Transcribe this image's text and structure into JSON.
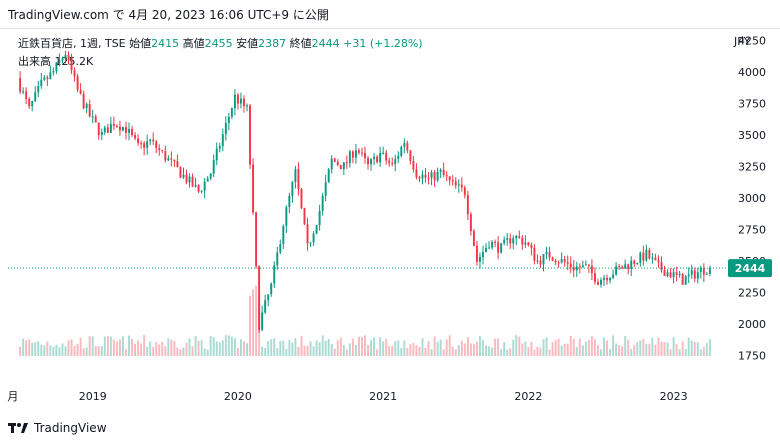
{
  "header": {
    "source_line": "TradingView.com で 4月 20, 2023 16:06 UTC+9 に公開"
  },
  "legend": {
    "symbol": "近鉄百貨店, 1週, TSE",
    "open_label": "始値",
    "open": "2415",
    "high_label": "高値",
    "high": "2455",
    "low_label": "安値",
    "low": "2387",
    "close_label": "終値",
    "close": "2444",
    "change": "+31 (+1.28%)",
    "volume_label": "出来高",
    "volume": "125.2K"
  },
  "currency": "JPY",
  "last_price_tag": "2444",
  "footer": {
    "brand": "TradingView"
  },
  "chart_data": {
    "type": "candlestick",
    "interval": "1 week",
    "ylim": [
      1700,
      4300
    ],
    "y_ticks": [
      "4250",
      "4000",
      "3750",
      "3500",
      "3250",
      "3000",
      "2750",
      "2500",
      "2250",
      "2000",
      "1750"
    ],
    "x_labels": [
      "月",
      "2019",
      "2020",
      "2021",
      "2022",
      "2023"
    ],
    "last_price": 2444,
    "colors": {
      "up": "#089981",
      "down": "#f23645"
    },
    "series": [
      {
        "name": "price",
        "points": [
          [
            "2018-07",
            3950
          ],
          [
            "2018-08",
            3700
          ],
          [
            "2018-09",
            3900
          ],
          [
            "2018-10",
            4000
          ],
          [
            "2018-11",
            4150
          ],
          [
            "2018-12",
            3850
          ],
          [
            "2019-01",
            3650
          ],
          [
            "2019-02",
            3500
          ],
          [
            "2019-03",
            3600
          ],
          [
            "2019-04",
            3550
          ],
          [
            "2019-05",
            3400
          ],
          [
            "2019-06",
            3450
          ],
          [
            "2019-07",
            3350
          ],
          [
            "2019-08",
            3250
          ],
          [
            "2019-09",
            3150
          ],
          [
            "2019-10",
            3050
          ],
          [
            "2019-11",
            3200
          ],
          [
            "2019-12",
            3500
          ],
          [
            "2020-01",
            3800
          ],
          [
            "2020-02",
            3700
          ],
          [
            "2020-03",
            2000
          ],
          [
            "2020-04",
            2300
          ],
          [
            "2020-05",
            2800
          ],
          [
            "2020-06",
            3200
          ],
          [
            "2020-07",
            2600
          ],
          [
            "2020-08",
            2900
          ],
          [
            "2020-09",
            3300
          ],
          [
            "2020-10",
            3250
          ],
          [
            "2020-11",
            3400
          ],
          [
            "2020-12",
            3250
          ],
          [
            "2021-01",
            3350
          ],
          [
            "2021-02",
            3250
          ],
          [
            "2021-03",
            3450
          ],
          [
            "2021-04",
            3200
          ],
          [
            "2021-05",
            3150
          ],
          [
            "2021-06",
            3200
          ],
          [
            "2021-07",
            3100
          ],
          [
            "2021-08",
            3050
          ],
          [
            "2021-09",
            2500
          ],
          [
            "2021-10",
            2650
          ],
          [
            "2021-11",
            2600
          ],
          [
            "2021-12",
            2700
          ],
          [
            "2022-01",
            2650
          ],
          [
            "2022-02",
            2500
          ],
          [
            "2022-03",
            2550
          ],
          [
            "2022-04",
            2500
          ],
          [
            "2022-05",
            2450
          ],
          [
            "2022-06",
            2450
          ],
          [
            "2022-07",
            2350
          ],
          [
            "2022-08",
            2400
          ],
          [
            "2022-09",
            2450
          ],
          [
            "2022-10",
            2500
          ],
          [
            "2022-11",
            2550
          ],
          [
            "2022-12",
            2450
          ],
          [
            "2023-01",
            2400
          ],
          [
            "2023-02",
            2350
          ],
          [
            "2023-03",
            2400
          ],
          [
            "2023-04",
            2444
          ]
        ]
      }
    ]
  }
}
